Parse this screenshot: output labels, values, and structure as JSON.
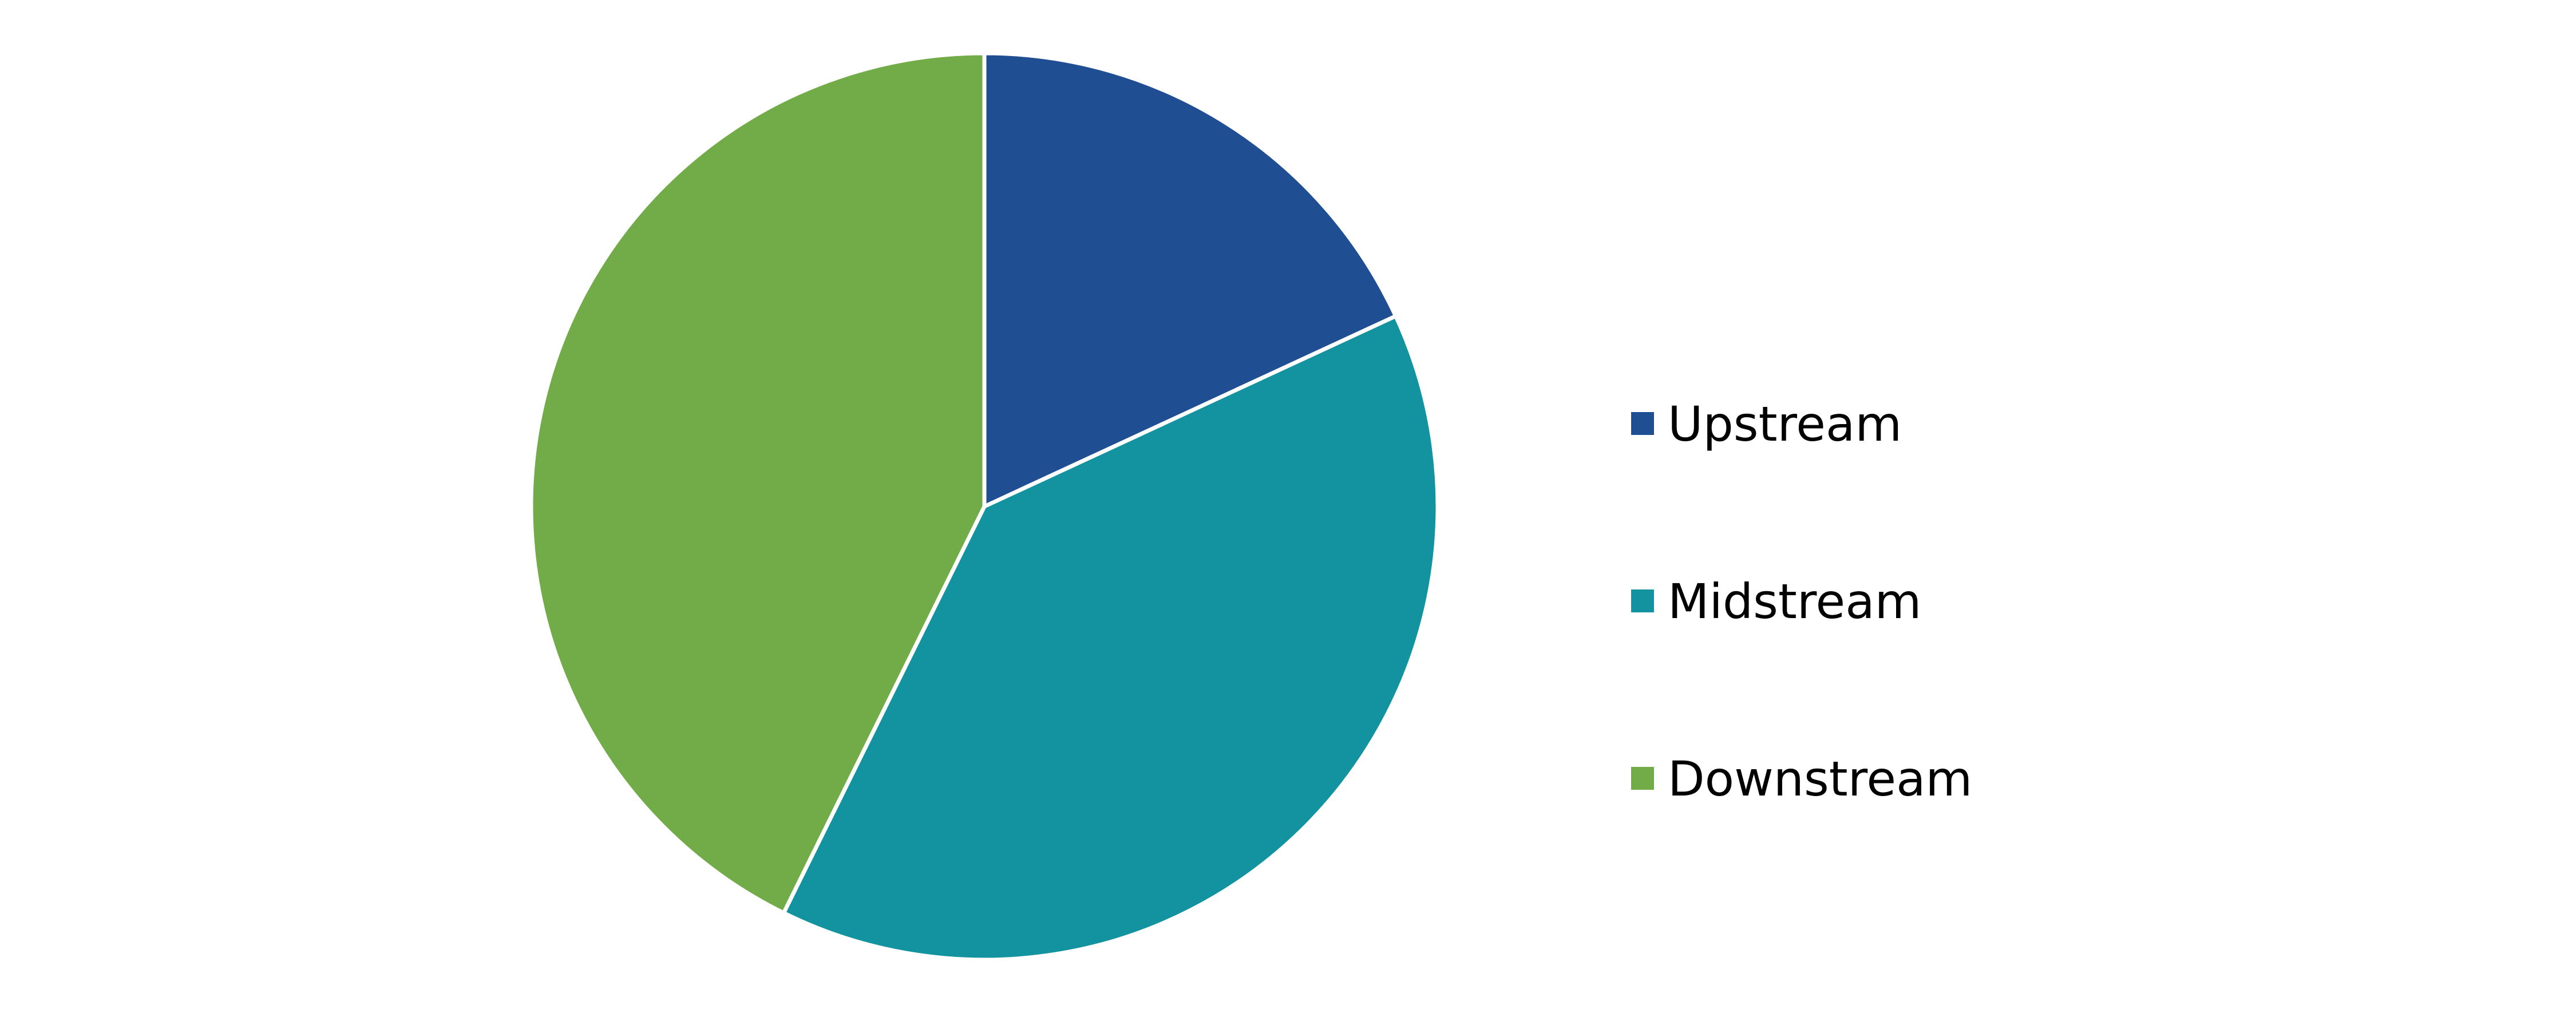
{
  "chart_data": {
    "type": "pie",
    "title": "",
    "start_angle_deg": 90,
    "direction": "clockwise",
    "categories": [
      "Upstream",
      "Midstream",
      "Downstream"
    ],
    "values": [
      18.1,
      39.2,
      42.7
    ],
    "colors": [
      "#1f4e92",
      "#1392a0",
      "#72ac49"
    ],
    "legend": {
      "placement": "right",
      "entries": [
        "Upstream",
        "Midstream",
        "Downstream"
      ]
    }
  }
}
